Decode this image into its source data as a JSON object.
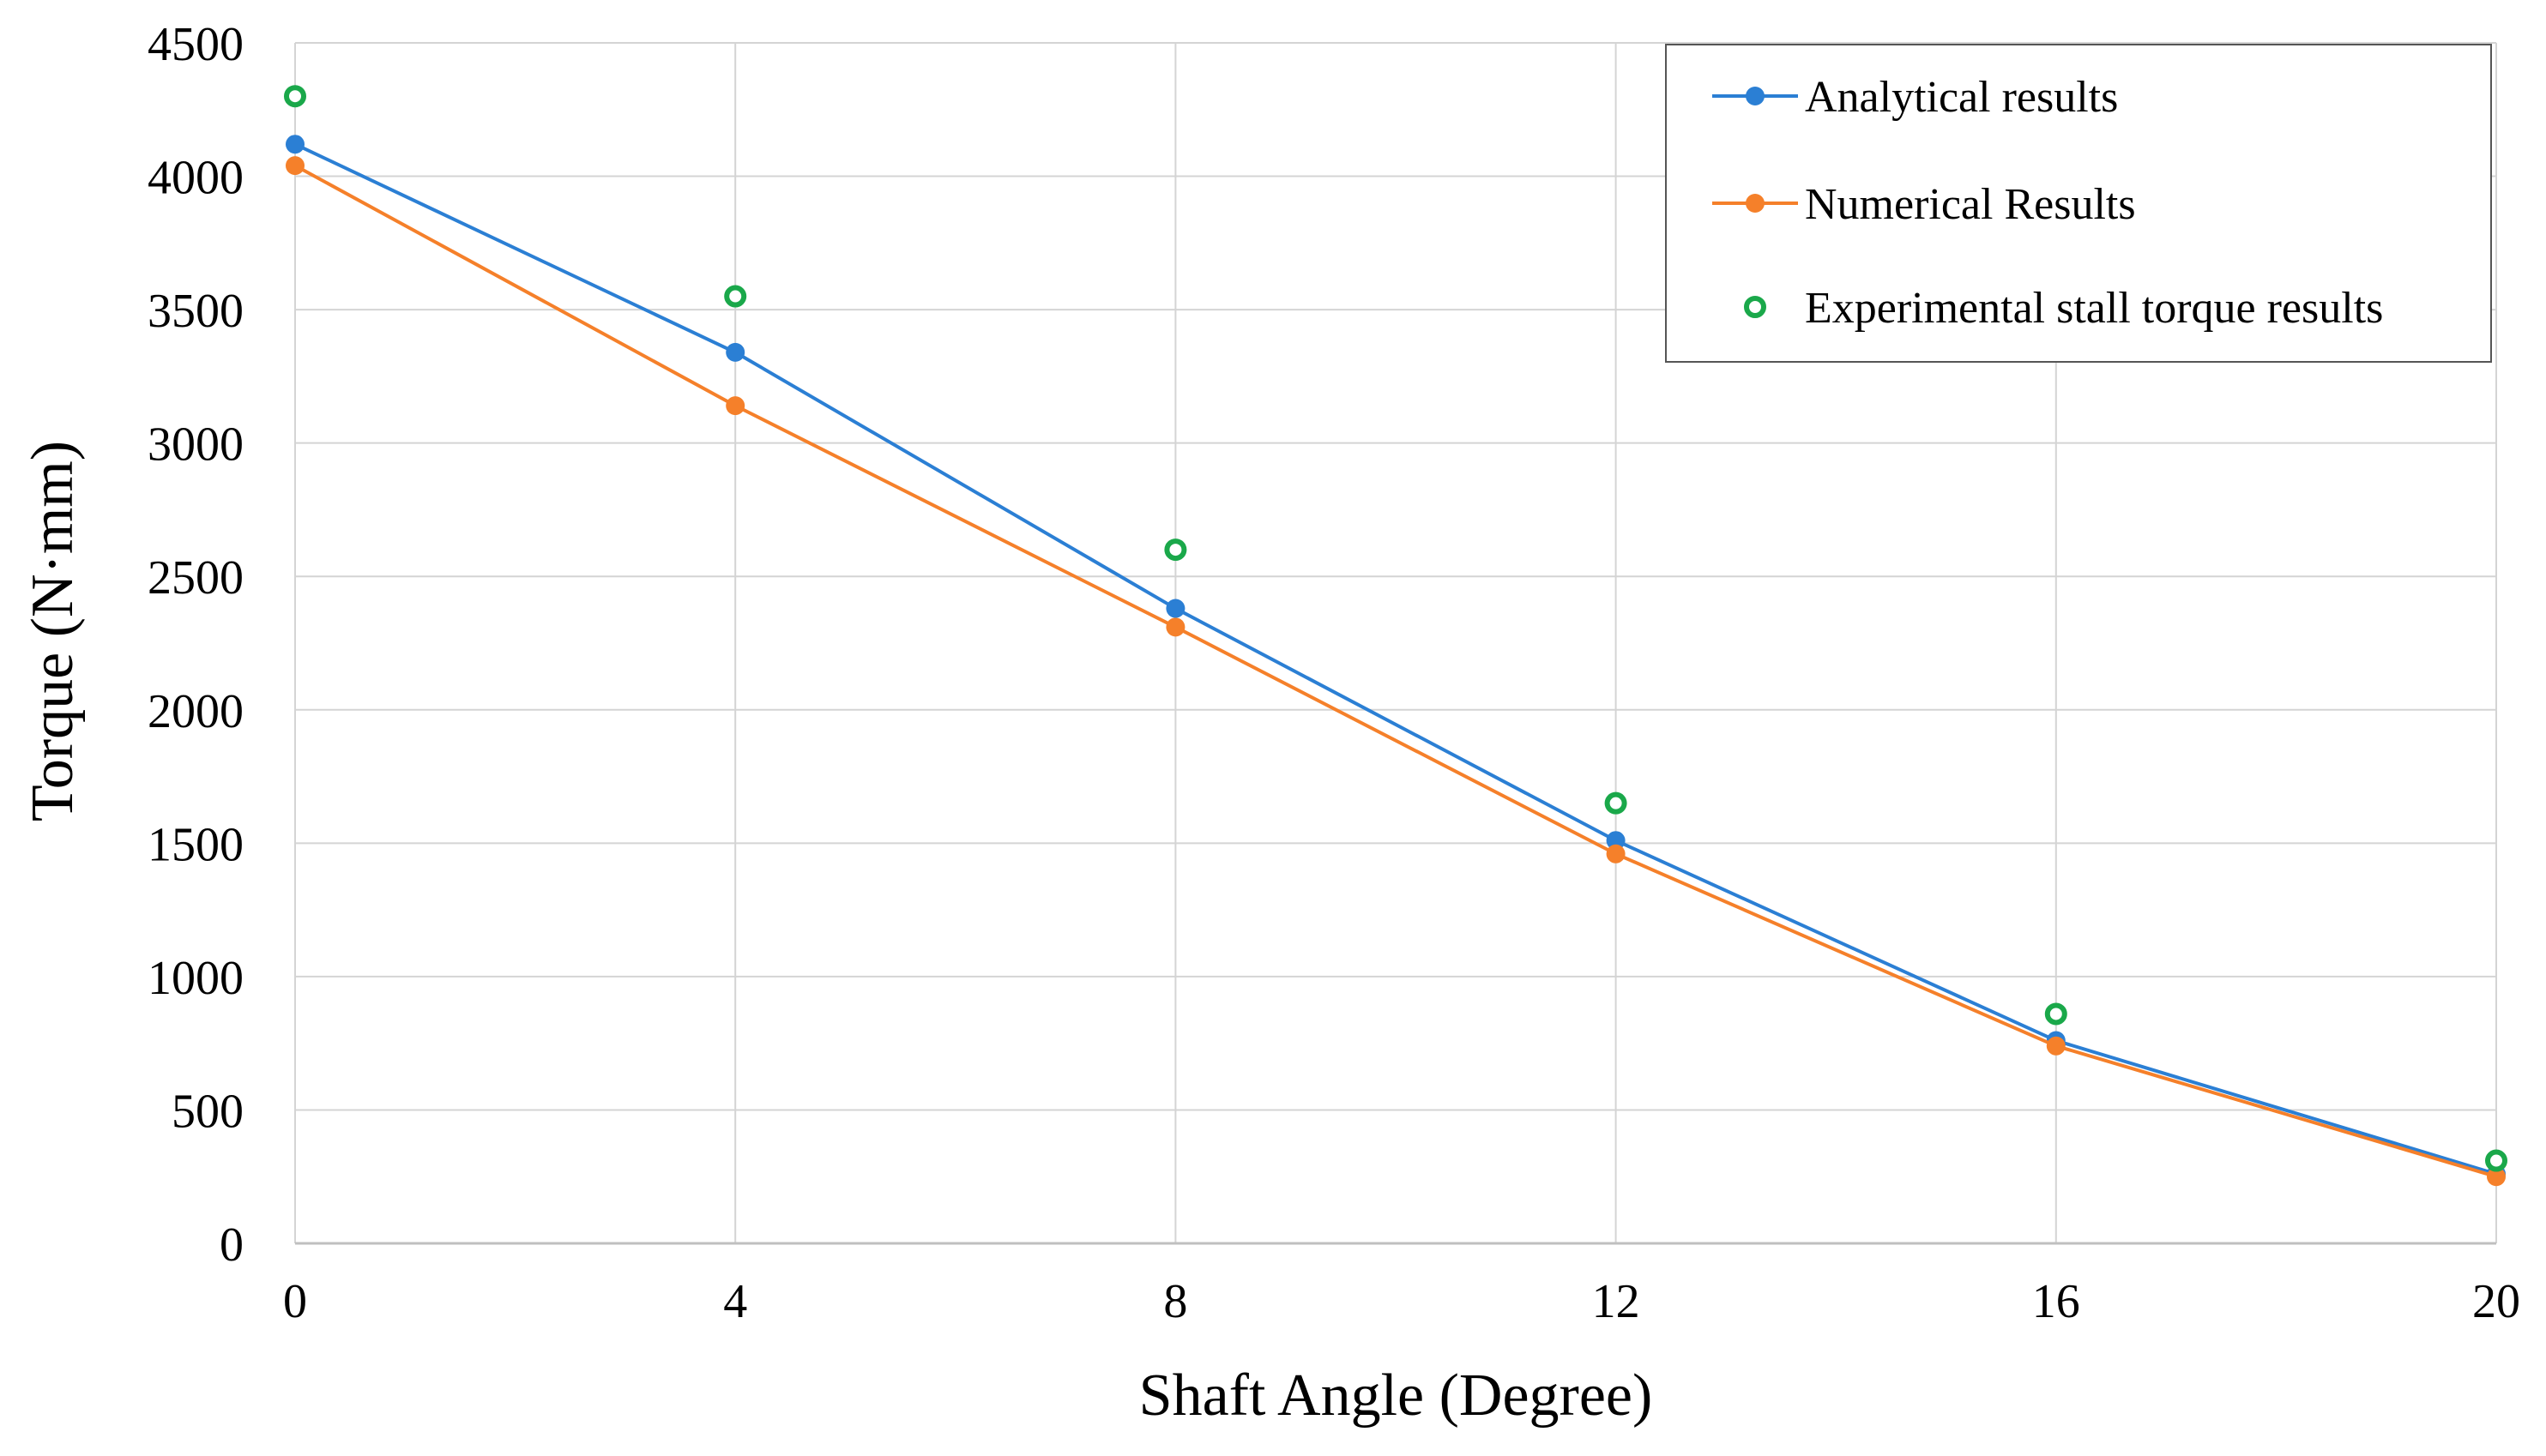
{
  "chart_data": {
    "type": "line",
    "title": "",
    "xlabel": "Shaft Angle (Degree)",
    "ylabel": "Torque (N·mm)",
    "xlim": [
      0,
      20
    ],
    "ylim": [
      0,
      4500
    ],
    "x_ticks": [
      0,
      4,
      8,
      12,
      16,
      20
    ],
    "y_ticks": [
      0,
      500,
      1000,
      1500,
      2000,
      2500,
      3000,
      3500,
      4000,
      4500
    ],
    "grid": true,
    "legend_position": "top-right",
    "series": [
      {
        "name": "Analytical results",
        "style": "line-marker",
        "color": "#2b7fd4",
        "x": [
          0,
          4,
          8,
          12,
          16,
          20
        ],
        "y": [
          4120,
          3340,
          2380,
          1510,
          760,
          260
        ]
      },
      {
        "name": "Numerical Results",
        "style": "line-marker",
        "color": "#f5802a",
        "x": [
          0,
          4,
          8,
          12,
          16,
          20
        ],
        "y": [
          4040,
          3140,
          2310,
          1460,
          740,
          250
        ]
      },
      {
        "name": "Experimental stall torque results",
        "style": "open-marker",
        "color": "#1aa84a",
        "x": [
          0,
          4,
          8,
          12,
          16,
          20
        ],
        "y": [
          4300,
          3550,
          2600,
          1650,
          860,
          310
        ]
      }
    ]
  }
}
